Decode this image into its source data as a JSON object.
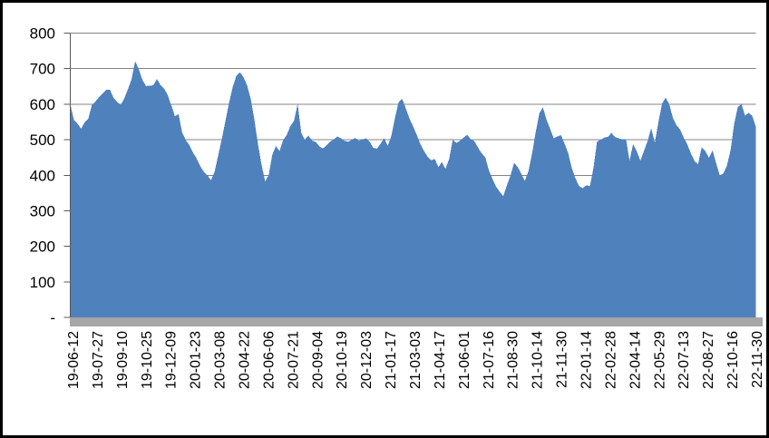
{
  "chart_data": {
    "type": "area",
    "title": "",
    "xlabel": "",
    "ylabel": "",
    "grid": true,
    "legend": false,
    "y_axis": {
      "min": 0,
      "max": 800,
      "step": 100,
      "tick_labels": [
        "800",
        "700",
        "600",
        "500",
        "400",
        "300",
        "200",
        "100",
        "-"
      ]
    },
    "x_tick_labels": [
      "19-06-12",
      "19-07-27",
      "19-09-10",
      "19-10-25",
      "19-12-09",
      "20-01-23",
      "20-03-08",
      "20-04-22",
      "20-06-06",
      "20-07-21",
      "20-09-04",
      "20-10-19",
      "20-12-03",
      "21-01-17",
      "21-03-03",
      "21-04-17",
      "21-06-01",
      "21-07-16",
      "21-08-30",
      "21-10-14",
      "21-11-30",
      "22-01-14",
      "22-02-28",
      "22-04-14",
      "22-05-29",
      "22-07-13",
      "22-08-27",
      "22-10-16",
      "22-11-30"
    ],
    "series": [
      {
        "name": "values",
        "color": "#4F81BD",
        "values": [
          600,
          556,
          545,
          531,
          549,
          560,
          598,
          608,
          620,
          630,
          640,
          640,
          618,
          606,
          598,
          617,
          643,
          670,
          721,
          698,
          668,
          651,
          652,
          653,
          671,
          654,
          644,
          626,
          597,
          566,
          572,
          521,
          499,
          485,
          464,
          447,
          426,
          410,
          400,
          386,
          410,
          456,
          502,
          553,
          604,
          648,
          679,
          690,
          676,
          653,
          616,
          558,
          489,
          430,
          383,
          401,
          458,
          482,
          468,
          499,
          514,
          538,
          553,
          601,
          520,
          500,
          512,
          497,
          494,
          482,
          475,
          484,
          494,
          501,
          509,
          504,
          497,
          494,
          500,
          505,
          497,
          501,
          504,
          494,
          477,
          475,
          489,
          504,
          483,
          511,
          562,
          606,
          615,
          588,
          560,
          538,
          514,
          488,
          469,
          453,
          442,
          446,
          423,
          437,
          418,
          446,
          500,
          491,
          497,
          506,
          514,
          501,
          496,
          478,
          462,
          451,
          414,
          390,
          368,
          354,
          341,
          372,
          399,
          435,
          423,
          404,
          384,
          412,
          462,
          522,
          575,
          591,
          556,
          530,
          504,
          509,
          513,
          489,
          462,
          420,
          391,
          370,
          363,
          372,
          369,
          420,
          495,
          500,
          506,
          508,
          519,
          507,
          504,
          501,
          502,
          441,
          488,
          467,
          441,
          469,
          496,
          532,
          492,
          550,
          601,
          618,
          600,
          562,
          541,
          529,
          506,
          487,
          462,
          440,
          431,
          479,
          468,
          449,
          470,
          434,
          400,
          405,
          428,
          470,
          545,
          592,
          600,
          568,
          576,
          567,
          537
        ]
      }
    ],
    "colors": {
      "area": "#4F81BD",
      "gridline": "#848484",
      "axis_line": "#595959",
      "axis_band": "#A6A6A6",
      "text": "#000000",
      "frame": "#000000",
      "background": "#FFFFFF"
    }
  }
}
